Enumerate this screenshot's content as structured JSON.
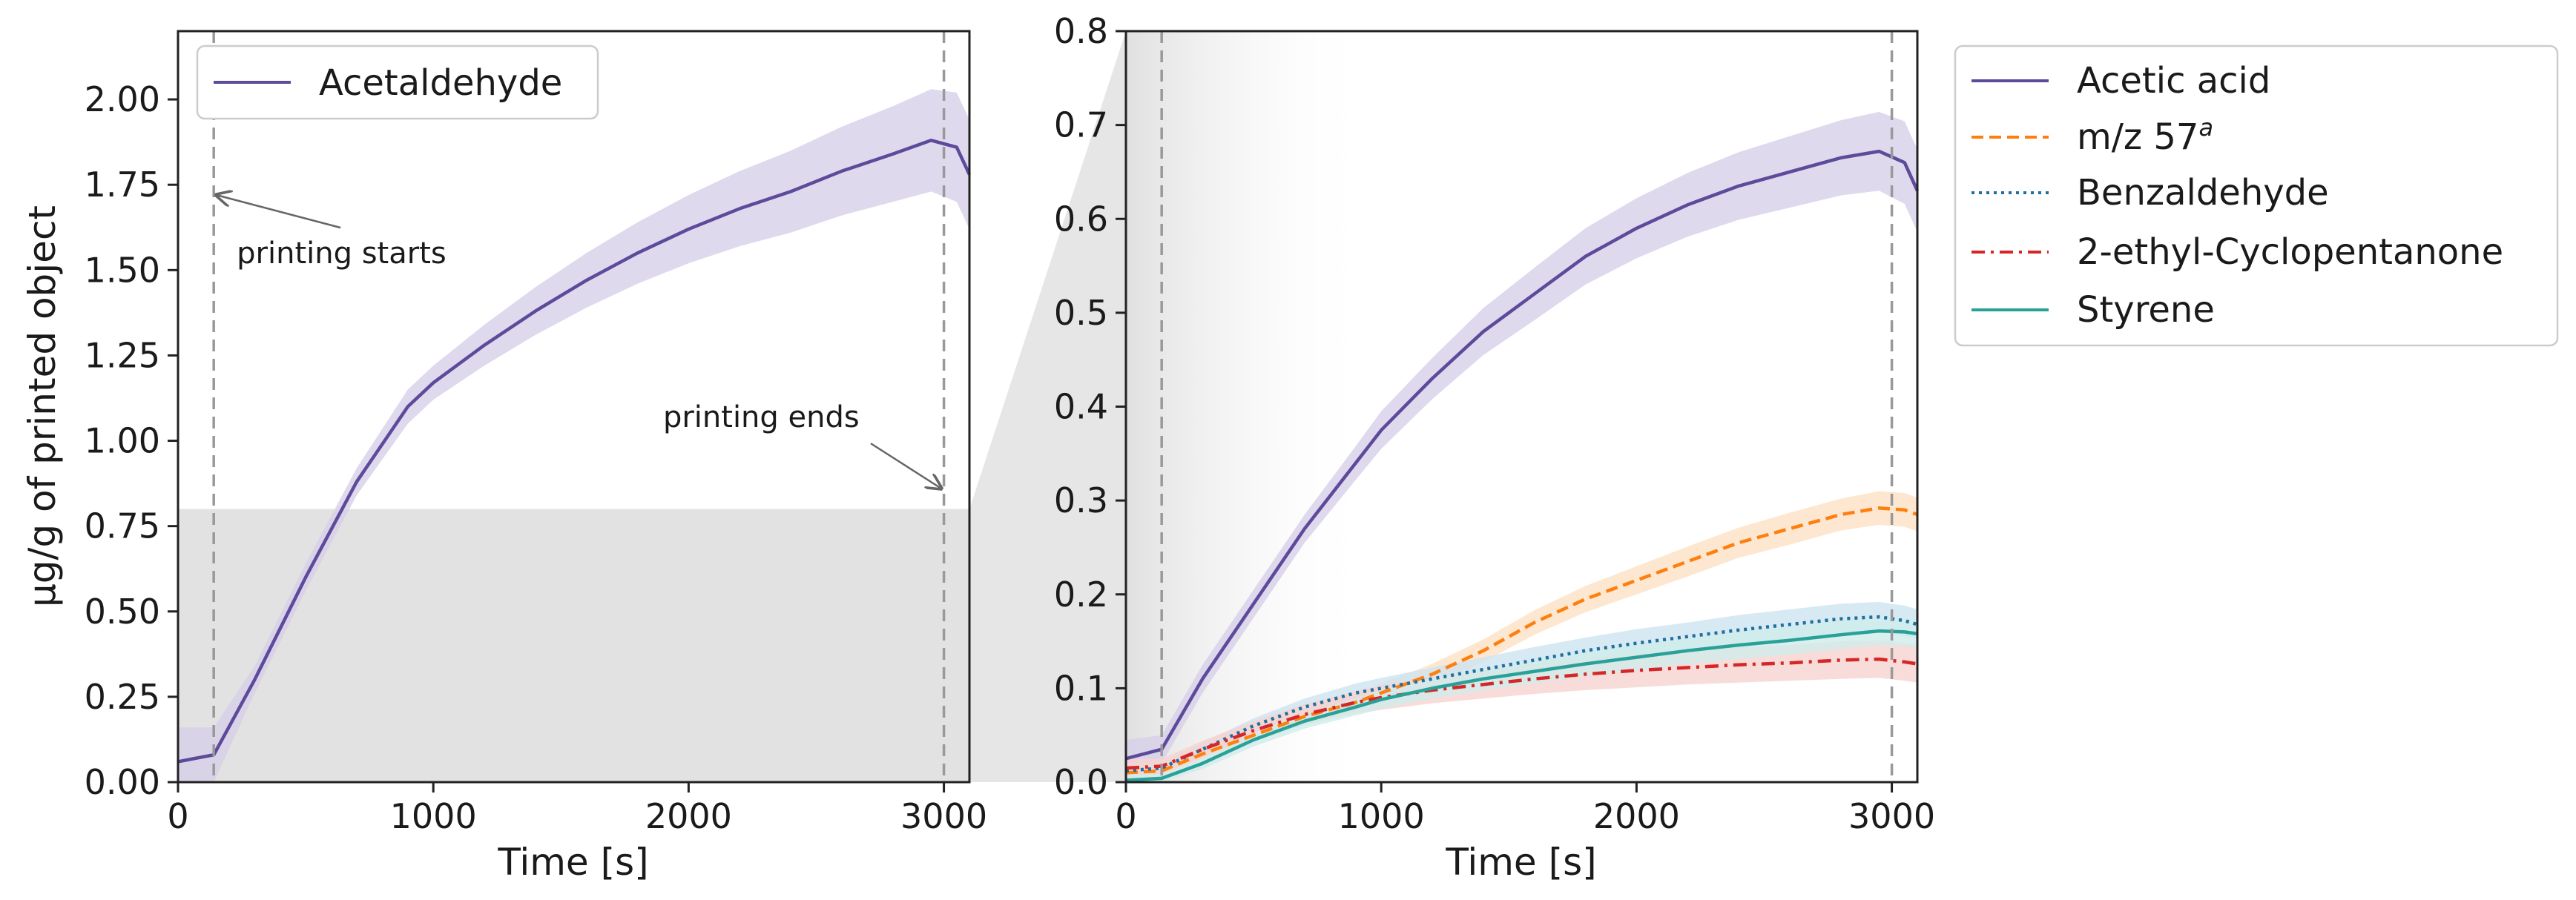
{
  "chart_data": [
    {
      "type": "line",
      "xlabel": "Time [s]",
      "ylabel": "µg/g of printed object",
      "xlim": [
        0,
        3100
      ],
      "ylim": [
        0,
        2.2
      ],
      "xticks": [
        "0",
        "1000",
        "2000",
        "3000"
      ],
      "xtick_values": [
        0,
        1000,
        2000,
        3000
      ],
      "yticks": [
        "0.00",
        "0.25",
        "0.50",
        "0.75",
        "1.00",
        "1.25",
        "1.50",
        "1.75",
        "2.00"
      ],
      "ytick_values": [
        0,
        0.25,
        0.5,
        0.75,
        1.0,
        1.25,
        1.5,
        1.75,
        2.0
      ],
      "legend_position": "top-left",
      "vlines": [
        140,
        3000
      ],
      "shaded_region": {
        "y0": 0,
        "y1": 0.8,
        "color": "#e2e2e2"
      },
      "annotations": [
        {
          "text": "printing starts",
          "x": 230,
          "y": 1.52,
          "arrow_to": [
            150,
            1.72
          ]
        },
        {
          "text": "printing ends",
          "x": 1900,
          "y": 1.04,
          "arrow_to": [
            2990,
            0.86
          ]
        }
      ],
      "series": [
        {
          "name": "Acetaldehyde",
          "color": "#5e4a9a",
          "band_color": "#d7d0ea",
          "style": "solid",
          "x": [
            0,
            140,
            300,
            500,
            700,
            900,
            1000,
            1200,
            1400,
            1600,
            1800,
            2000,
            2200,
            2400,
            2600,
            2800,
            2950,
            3050,
            3100
          ],
          "y": [
            0.06,
            0.08,
            0.3,
            0.6,
            0.88,
            1.1,
            1.17,
            1.28,
            1.38,
            1.47,
            1.55,
            1.62,
            1.68,
            1.73,
            1.79,
            1.84,
            1.88,
            1.86,
            1.78
          ],
          "err": [
            0.1,
            0.08,
            0.04,
            0.04,
            0.04,
            0.05,
            0.05,
            0.06,
            0.07,
            0.08,
            0.09,
            0.1,
            0.11,
            0.12,
            0.13,
            0.14,
            0.15,
            0.16,
            0.16
          ]
        }
      ]
    },
    {
      "type": "line",
      "xlabel": "Time [s]",
      "ylabel": "",
      "xlim": [
        0,
        3100
      ],
      "ylim": [
        0,
        0.8
      ],
      "xticks": [
        "0",
        "1000",
        "2000",
        "3000"
      ],
      "xtick_values": [
        0,
        1000,
        2000,
        3000
      ],
      "yticks": [
        "0.0",
        "0.1",
        "0.2",
        "0.3",
        "0.4",
        "0.5",
        "0.6",
        "0.7",
        "0.8"
      ],
      "ytick_values": [
        0,
        0.1,
        0.2,
        0.3,
        0.4,
        0.5,
        0.6,
        0.7,
        0.8
      ],
      "legend_position": "outside-right",
      "vlines": [
        140,
        3000
      ],
      "series": [
        {
          "name": "Acetic acid",
          "color": "#5e4a9a",
          "band_color": "#d7d0ea",
          "style": "solid",
          "x": [
            0,
            140,
            300,
            500,
            700,
            900,
            1000,
            1200,
            1400,
            1600,
            1800,
            2000,
            2200,
            2400,
            2600,
            2800,
            2950,
            3050,
            3100
          ],
          "y": [
            0.025,
            0.035,
            0.11,
            0.19,
            0.27,
            0.34,
            0.375,
            0.43,
            0.48,
            0.52,
            0.56,
            0.59,
            0.615,
            0.635,
            0.65,
            0.665,
            0.672,
            0.66,
            0.63
          ],
          "err": [
            0.02,
            0.015,
            0.015,
            0.015,
            0.015,
            0.018,
            0.02,
            0.022,
            0.025,
            0.028,
            0.03,
            0.032,
            0.034,
            0.036,
            0.038,
            0.04,
            0.042,
            0.044,
            0.044
          ]
        },
        {
          "name": "m/z 57",
          "superscript": "a",
          "color": "#ff7f0e",
          "band_color": "#fde1c4",
          "style": "dashed",
          "x": [
            0,
            140,
            300,
            500,
            700,
            900,
            1000,
            1200,
            1400,
            1600,
            1800,
            2000,
            2200,
            2400,
            2600,
            2800,
            2950,
            3050,
            3100
          ],
          "y": [
            0.01,
            0.012,
            0.03,
            0.05,
            0.07,
            0.085,
            0.095,
            0.115,
            0.14,
            0.17,
            0.195,
            0.215,
            0.235,
            0.255,
            0.27,
            0.285,
            0.292,
            0.29,
            0.285
          ],
          "err": [
            0.008,
            0.006,
            0.006,
            0.007,
            0.008,
            0.009,
            0.01,
            0.011,
            0.012,
            0.013,
            0.014,
            0.015,
            0.016,
            0.016,
            0.017,
            0.017,
            0.018,
            0.018,
            0.018
          ]
        },
        {
          "name": "Benzaldehyde",
          "color": "#1f6f9f",
          "band_color": "#cde3f0",
          "style": "dotted",
          "x": [
            0,
            140,
            300,
            500,
            700,
            900,
            1000,
            1200,
            1400,
            1600,
            1800,
            2000,
            2200,
            2400,
            2600,
            2800,
            2950,
            3050,
            3100
          ],
          "y": [
            0.012,
            0.015,
            0.035,
            0.06,
            0.08,
            0.095,
            0.1,
            0.11,
            0.12,
            0.13,
            0.14,
            0.148,
            0.155,
            0.162,
            0.168,
            0.174,
            0.176,
            0.172,
            0.168
          ],
          "err": [
            0.008,
            0.006,
            0.007,
            0.008,
            0.009,
            0.01,
            0.011,
            0.012,
            0.013,
            0.014,
            0.014,
            0.015,
            0.015,
            0.016,
            0.016,
            0.016,
            0.016,
            0.016,
            0.016
          ]
        },
        {
          "name": "2-ethyl-Cyclopentanone",
          "color": "#d62728",
          "band_color": "#f6d3d0",
          "style": "dashdot",
          "x": [
            0,
            140,
            300,
            500,
            700,
            900,
            1000,
            1200,
            1400,
            1600,
            1800,
            2000,
            2200,
            2400,
            2600,
            2800,
            2950,
            3050,
            3100
          ],
          "y": [
            0.015,
            0.017,
            0.035,
            0.055,
            0.072,
            0.085,
            0.09,
            0.098,
            0.104,
            0.11,
            0.115,
            0.119,
            0.122,
            0.125,
            0.127,
            0.13,
            0.131,
            0.128,
            0.126
          ],
          "err": [
            0.01,
            0.008,
            0.009,
            0.01,
            0.011,
            0.012,
            0.013,
            0.014,
            0.015,
            0.016,
            0.017,
            0.018,
            0.018,
            0.019,
            0.019,
            0.02,
            0.02,
            0.02,
            0.02
          ]
        },
        {
          "name": "Styrene",
          "color": "#2aa198",
          "band_color": "#cfeceb",
          "style": "solid",
          "x": [
            0,
            140,
            300,
            500,
            700,
            900,
            1000,
            1200,
            1400,
            1600,
            1800,
            2000,
            2200,
            2400,
            2600,
            2800,
            2950,
            3050,
            3100
          ],
          "y": [
            0.002,
            0.004,
            0.02,
            0.045,
            0.065,
            0.08,
            0.088,
            0.1,
            0.11,
            0.118,
            0.126,
            0.133,
            0.14,
            0.146,
            0.151,
            0.157,
            0.161,
            0.16,
            0.158
          ],
          "err": [
            0.006,
            0.005,
            0.006,
            0.007,
            0.008,
            0.009,
            0.01,
            0.011,
            0.012,
            0.013,
            0.013,
            0.014,
            0.014,
            0.015,
            0.015,
            0.015,
            0.015,
            0.015,
            0.015
          ]
        }
      ]
    }
  ]
}
